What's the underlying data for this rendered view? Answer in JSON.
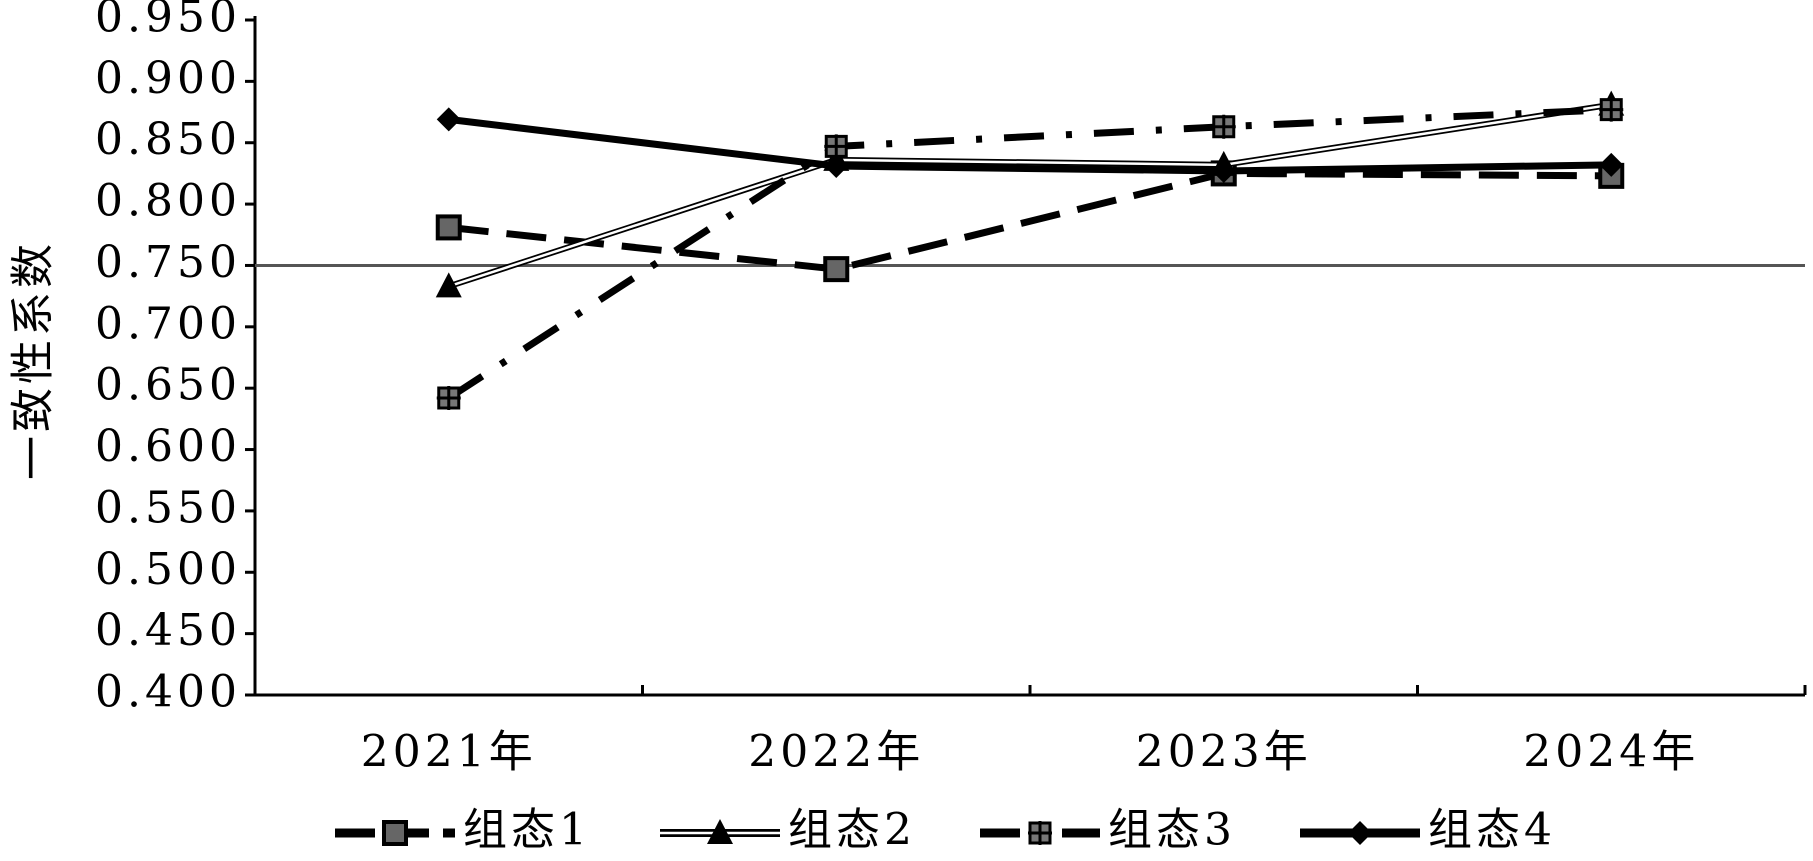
{
  "chart_data": {
    "type": "line",
    "y_label": "一致性系数",
    "categories": [
      "2021年",
      "2022年",
      "2023年",
      "2024年"
    ],
    "series": [
      {
        "name": "组态1",
        "color": "#000000",
        "line_style": "dashed",
        "marker": "square",
        "values": [
          0.781,
          0.747,
          0.825,
          0.823
        ]
      },
      {
        "name": "组态2",
        "color": "#000000",
        "line_style": "double",
        "marker": "triangle",
        "values": [
          0.733,
          0.836,
          0.832,
          0.881
        ]
      },
      {
        "name": "组态3",
        "color": "#000000",
        "line_style": "dash-dot",
        "marker": "plus-square",
        "values": [
          0.642,
          0.847,
          0.863,
          0.877
        ]
      },
      {
        "name": "组态4",
        "color": "#000000",
        "line_style": "solid",
        "marker": "diamond",
        "values": [
          0.869,
          0.831,
          0.827,
          0.832
        ]
      }
    ],
    "reference_line": 0.75,
    "reference_color": "#555555",
    "ylim": [
      0.4,
      0.95
    ],
    "yticks": [
      {
        "value": 0.4,
        "label": "0.400"
      },
      {
        "value": 0.45,
        "label": "0.450"
      },
      {
        "value": 0.5,
        "label": "0.500"
      },
      {
        "value": 0.55,
        "label": "0.550"
      },
      {
        "value": 0.6,
        "label": "0.600"
      },
      {
        "value": 0.65,
        "label": "0.650"
      },
      {
        "value": 0.7,
        "label": "0.700"
      },
      {
        "value": 0.75,
        "label": "0.750"
      },
      {
        "value": 0.8,
        "label": "0.800"
      },
      {
        "value": 0.85,
        "label": "0.850"
      },
      {
        "value": 0.9,
        "label": "0.900"
      },
      {
        "value": 0.95,
        "label": "0.950"
      }
    ],
    "grid": false,
    "legend": "bottom"
  }
}
